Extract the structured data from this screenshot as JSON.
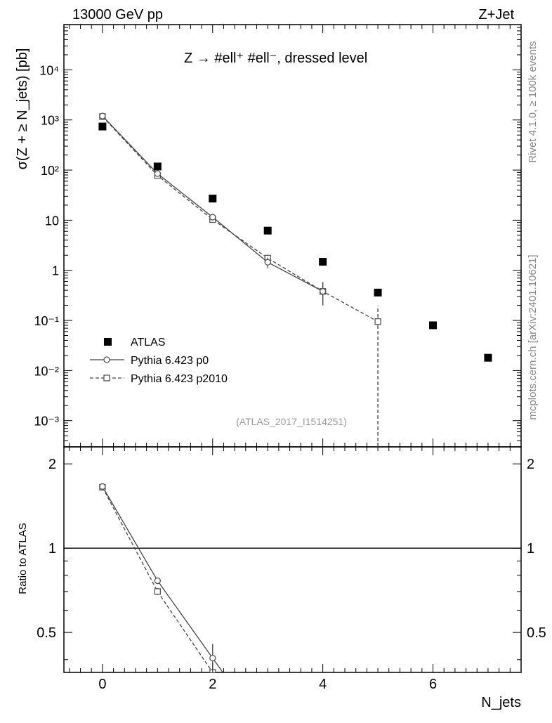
{
  "header": {
    "energy_label": "13000 GeV pp",
    "process_label": "Z+Jet"
  },
  "side": {
    "rivet_label": "Rivet 4.1.0, ≥ 100k events",
    "mcplots_label": "mcplots.cern.ch [arXiv:2401.10621]"
  },
  "top_panel": {
    "title": "Z → #ell⁺ #ell⁻, dressed level",
    "ylabel": "σ(Z + ≥ N_jets) [pb]",
    "analysis_id": "(ATLAS_2017_I1514251)",
    "ytick_labels": [
      "10⁻³",
      "10⁻²",
      "10⁻¹",
      "1",
      "10",
      "10²",
      "10³",
      "10⁴"
    ]
  },
  "bottom_panel": {
    "ylabel": "Ratio to ATLAS",
    "ytick_labels": [
      "0.5",
      "1",
      "2"
    ]
  },
  "x_axis": {
    "label": "N_jets",
    "tick_labels": [
      "0",
      "2",
      "4",
      "6"
    ]
  },
  "legend": {
    "entries": [
      "ATLAS",
      "Pythia 6.423 p0",
      "Pythia 6.423 p2010"
    ]
  },
  "chart_data": [
    {
      "type": "scatter",
      "panel": "main",
      "yscale": "log",
      "xlabel": "N_jets",
      "ylabel": "σ(Z + ≥ N_jets) [pb]",
      "xlim": [
        -0.7,
        7.6
      ],
      "ylim": [
        0.0003,
        80000
      ],
      "x": [
        0,
        1,
        2,
        3,
        4,
        5,
        6,
        7
      ],
      "series": [
        {
          "name": "ATLAS",
          "style": "marker",
          "color": "#000000",
          "values": [
            740,
            118,
            27,
            6.2,
            1.48,
            0.36,
            0.08,
            0.018
          ]
        },
        {
          "name": "Pythia 6.423 p0",
          "style": "solid-line",
          "color": "#444444",
          "values": [
            1200,
            85,
            11.5,
            1.45,
            0.38
          ],
          "err_low": [
            1150,
            80,
            10.8,
            1.1,
            0.2
          ],
          "err_high": [
            1250,
            90,
            12.2,
            1.8,
            0.58
          ]
        },
        {
          "name": "Pythia 6.423 p2010",
          "style": "dashed-line",
          "color": "#444444",
          "values": [
            1170,
            78,
            10.3,
            1.75,
            0.38,
            0.095
          ],
          "err_low": [
            1120,
            73,
            9.6,
            1.45,
            0.2,
            0.0003
          ],
          "err_high": [
            1220,
            83,
            11,
            2.05,
            0.58,
            0.195
          ]
        }
      ]
    },
    {
      "type": "line",
      "panel": "ratio",
      "ylabel": "Ratio to ATLAS",
      "xlim": [
        -0.7,
        7.6
      ],
      "ylim": [
        0.36,
        2.3
      ],
      "reference_line": 1,
      "x": [
        0,
        1,
        2
      ],
      "series": [
        {
          "name": "Pythia 6.423 p0",
          "style": "solid-line",
          "values": [
            1.66,
            0.765,
            0.405
          ],
          "err": [
            0.02,
            0.02,
            0.05
          ]
        },
        {
          "name": "Pythia 6.423 p2010",
          "style": "dashed-line",
          "values": [
            1.65,
            0.7,
            0.36
          ],
          "err": [
            0.02,
            0.02,
            0.03
          ]
        }
      ]
    }
  ]
}
